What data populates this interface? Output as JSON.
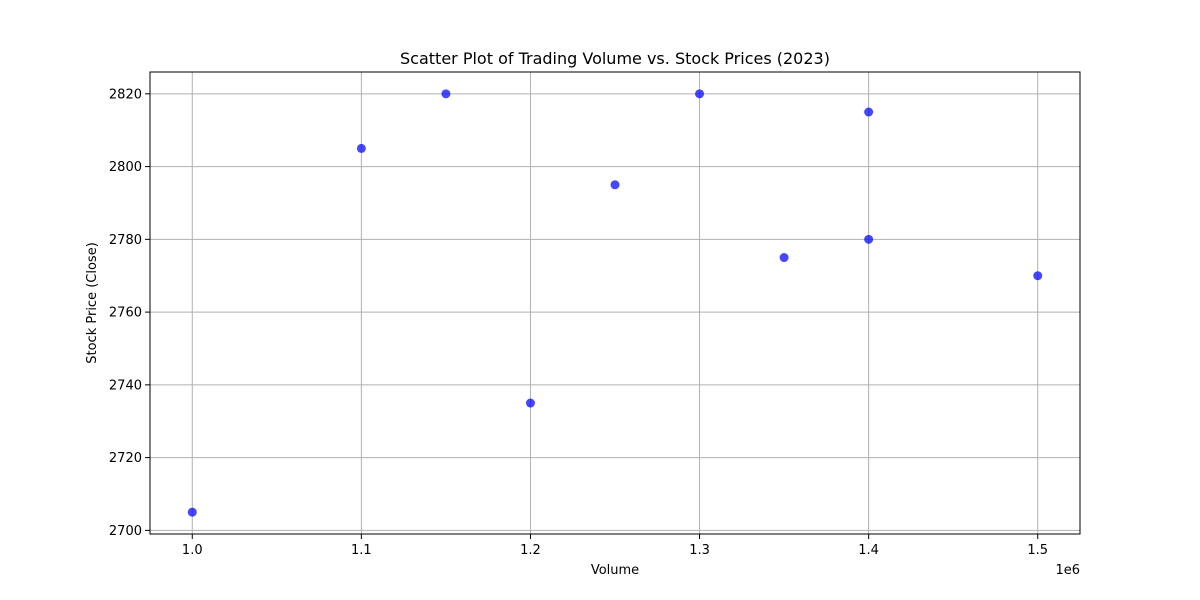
{
  "chart_data": {
    "type": "scatter",
    "title": "Scatter Plot of Trading Volume vs. Stock Prices (2023)",
    "xlabel": "Volume",
    "ylabel": "Stock Price (Close)",
    "x_offset_label": "1e6",
    "xlim": [
      975000,
      1525000
    ],
    "ylim": [
      2699,
      2826
    ],
    "x_ticks": [
      1000000,
      1100000,
      1200000,
      1300000,
      1400000,
      1500000
    ],
    "x_tick_labels": [
      "1.0",
      "1.1",
      "1.2",
      "1.3",
      "1.4",
      "1.5"
    ],
    "y_ticks": [
      2700,
      2720,
      2740,
      2760,
      2780,
      2800,
      2820
    ],
    "y_tick_labels": [
      "2700",
      "2720",
      "2740",
      "2760",
      "2780",
      "2800",
      "2820"
    ],
    "grid": true,
    "marker_color": "#0000ff",
    "series": [
      {
        "points": [
          {
            "x": 1000000,
            "y": 2705
          },
          {
            "x": 1100000,
            "y": 2805
          },
          {
            "x": 1150000,
            "y": 2820
          },
          {
            "x": 1200000,
            "y": 2735
          },
          {
            "x": 1250000,
            "y": 2795
          },
          {
            "x": 1300000,
            "y": 2820
          },
          {
            "x": 1350000,
            "y": 2775
          },
          {
            "x": 1400000,
            "y": 2815
          },
          {
            "x": 1400000,
            "y": 2780
          },
          {
            "x": 1500000,
            "y": 2770
          }
        ]
      }
    ]
  }
}
